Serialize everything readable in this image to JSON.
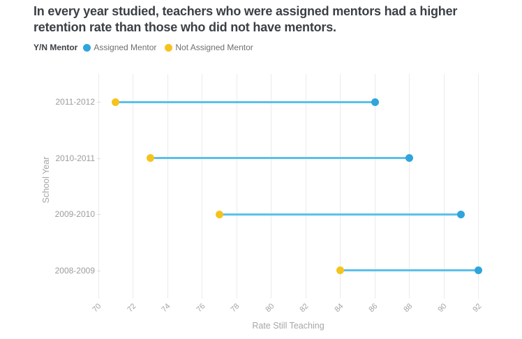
{
  "header": {
    "title": "In every year studied, teachers who were assigned mentors had a higher retention rate than those who did not have mentors."
  },
  "legend": {
    "label": "Y/N Mentor",
    "items": [
      {
        "name": "Assigned Mentor",
        "color": "#30a4dc"
      },
      {
        "name": "Not Assigned Mentor",
        "color": "#f5c31d"
      }
    ]
  },
  "chart_data": {
    "type": "dumbbell",
    "orientation": "horizontal",
    "categories": [
      "2011-2012",
      "2010-2011",
      "2009-2010",
      "2008-2009"
    ],
    "series": [
      {
        "name": "Assigned Mentor",
        "color": "#30a4dc",
        "values": [
          86,
          88,
          91,
          92
        ]
      },
      {
        "name": "Not Assigned Mentor",
        "color": "#f5c31d",
        "values": [
          71,
          73,
          77,
          84
        ]
      }
    ],
    "connector_color": "#5bc0ea",
    "title": "In every year studied, teachers who were assigned mentors had a higher retention rate than those who did not have mentors.",
    "xlabel": "Rate Still Teaching",
    "ylabel": "School Year",
    "xlim": [
      70,
      92
    ],
    "xticks": [
      70,
      72,
      74,
      76,
      78,
      80,
      82,
      84,
      86,
      88,
      90,
      92
    ],
    "grid": true,
    "legend_position": "top"
  }
}
